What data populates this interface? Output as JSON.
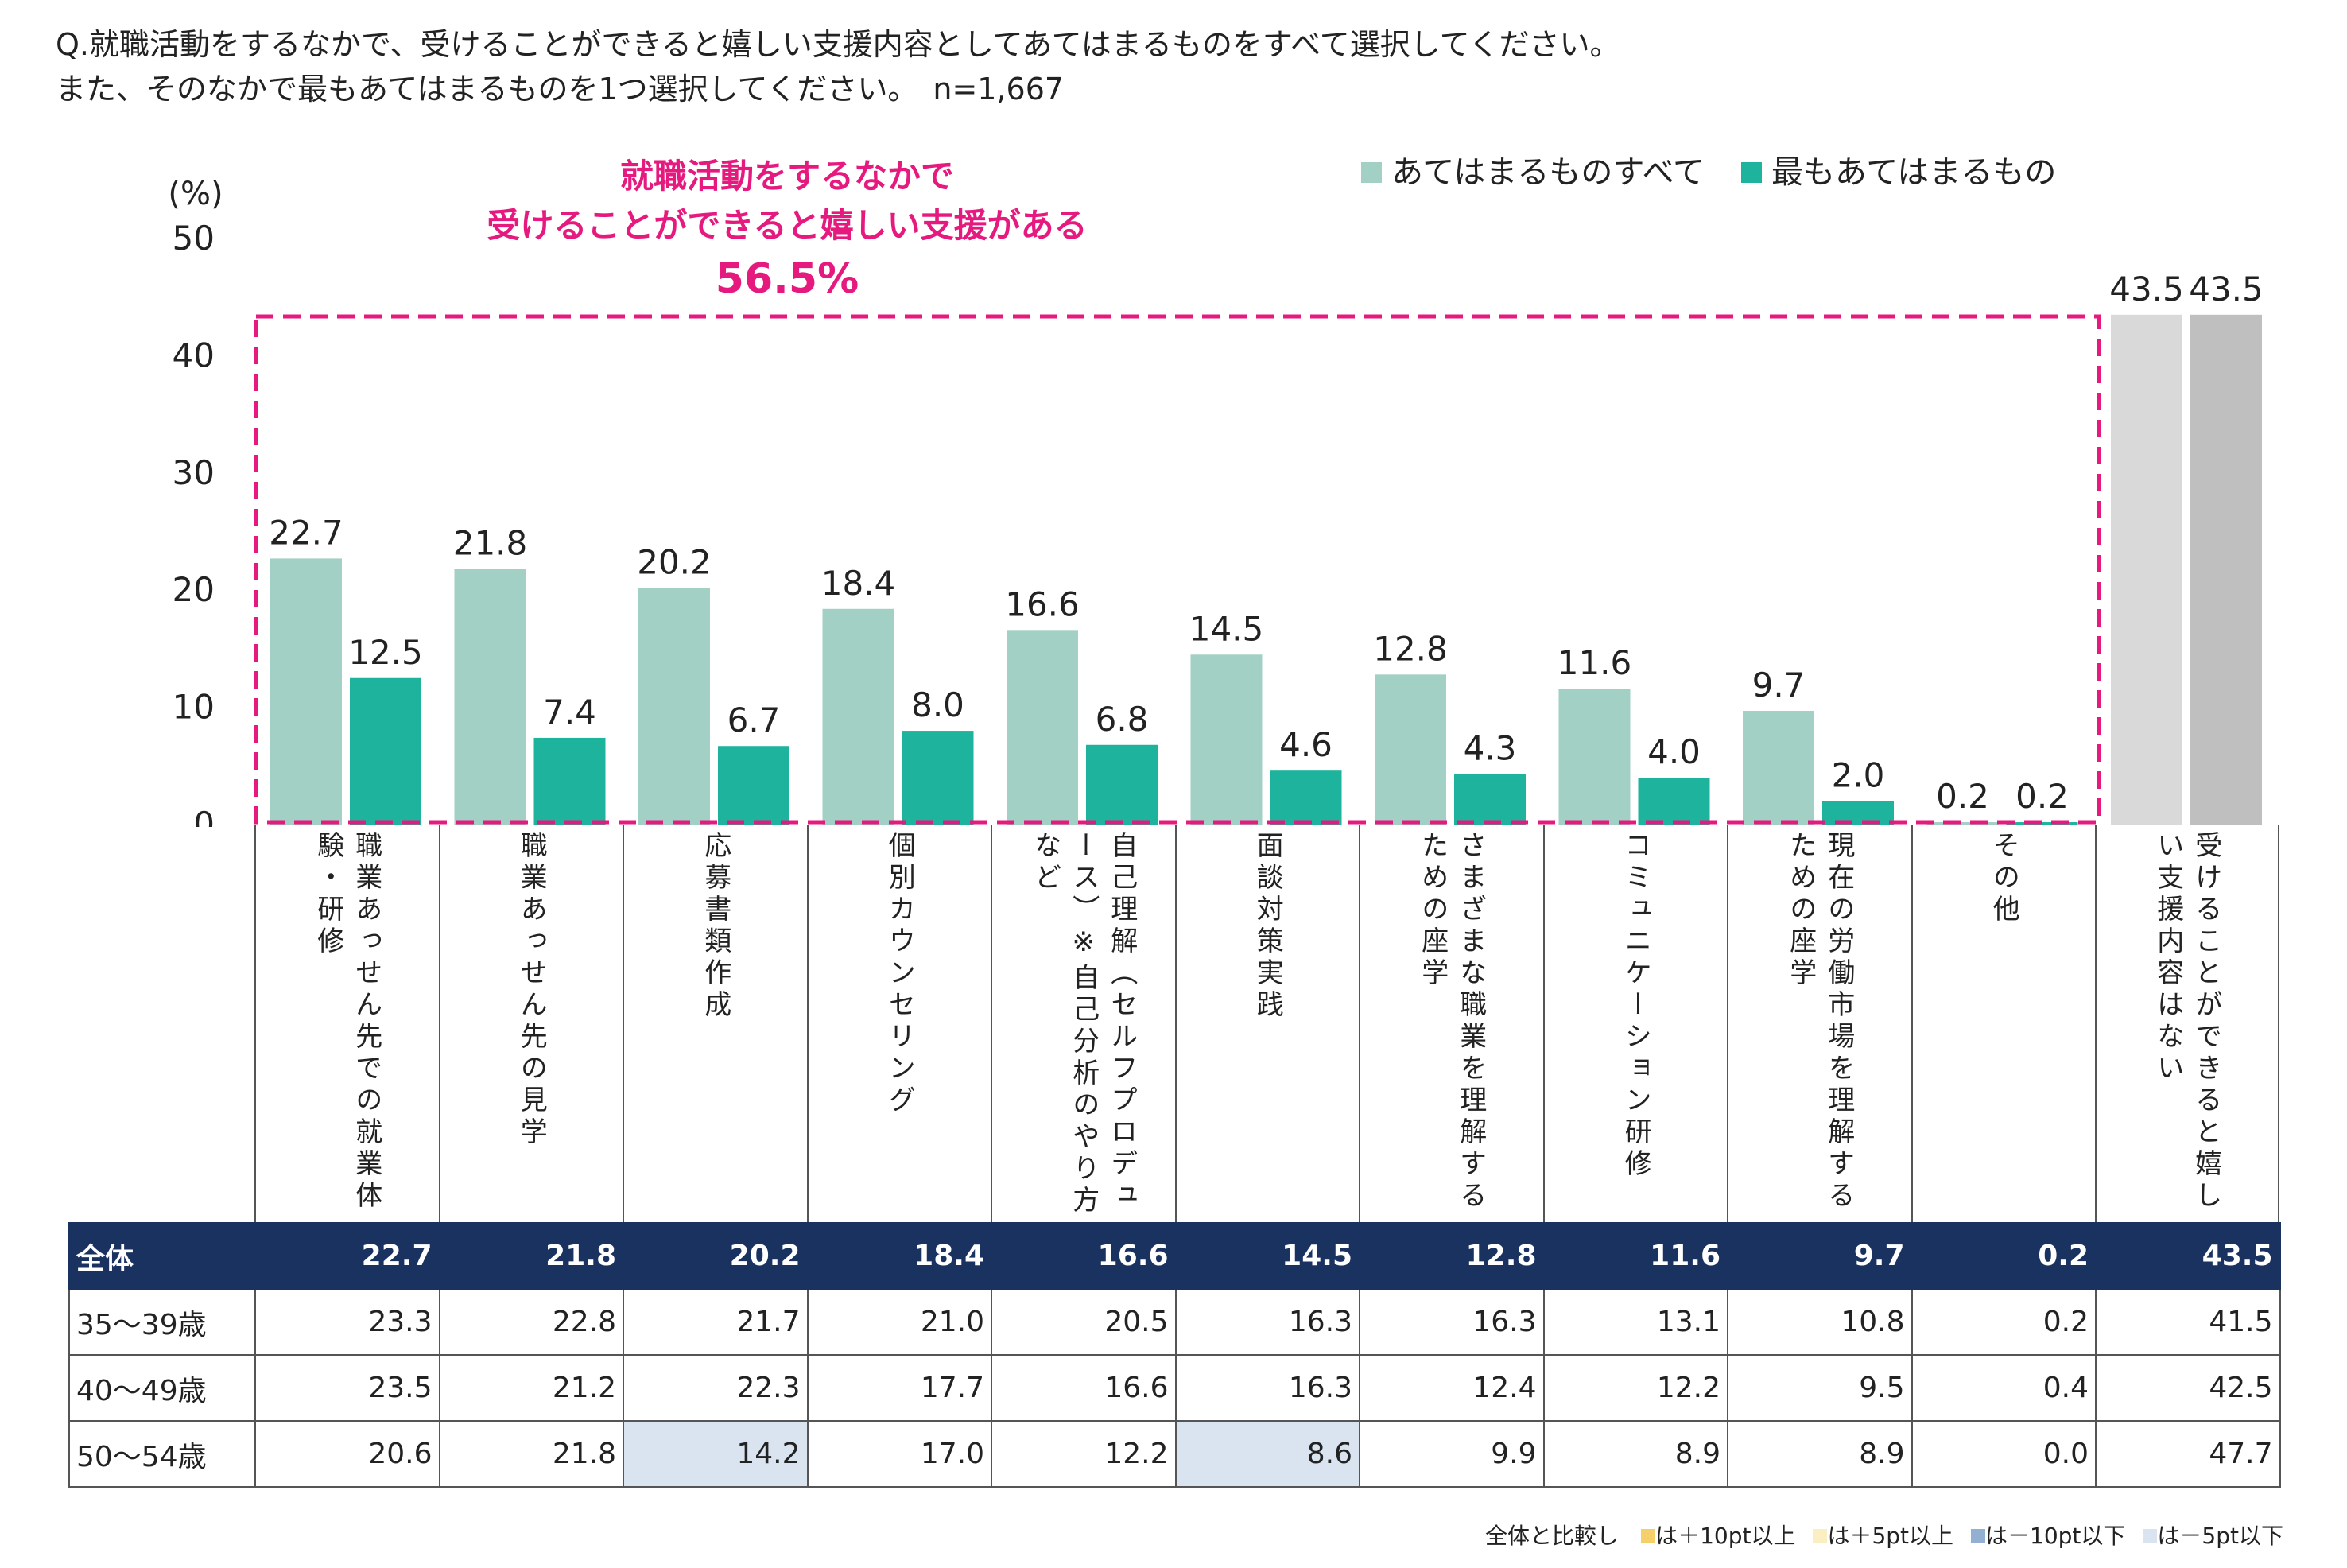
{
  "question": {
    "line1": "Q.就職活動をするなかで、受けることができると嬉しい支援内容としてあてはまるものをすべて選択してください。",
    "line2": "また、そのなかで最もあてはまるものを1つ選択してください。　n=1,667"
  },
  "callout": {
    "line1": "就職活動をするなかで",
    "line2": "受けることができると嬉しい支援がある",
    "value": "56.5%",
    "color": "#e6197e"
  },
  "footnote": {
    "label": "全体と比較し",
    "items": [
      {
        "text": "は＋10pt以上",
        "color": "#f5cf6a"
      },
      {
        "text": "は＋5pt以上",
        "color": "#fbeec3"
      },
      {
        "text": "は－10pt以下",
        "color": "#93b0d2"
      },
      {
        "text": "は－5pt以下",
        "color": "#dae3f0"
      }
    ]
  },
  "chart_data": {
    "type": "bar",
    "ylabel": "(%)",
    "ylim": [
      0,
      50
    ],
    "yticks": [
      0,
      10,
      20,
      30,
      40,
      50
    ],
    "grid": false,
    "legend_position": "top-right",
    "categories": [
      "職業あっせん先での就業体験・研修",
      "職業あっせん先の見学",
      "応募書類作成",
      "個別カウンセリング",
      "自己理解（セルフプロデュース）※自己分析のやり方など",
      "面談対策実践",
      "さまざまな職業を理解するための座学",
      "コミュニケーション研修",
      "現在の労働市場を理解するための座学",
      "その他",
      "受けることができると嬉しい支援内容はない"
    ],
    "series": [
      {
        "name": "あてはまるものすべて",
        "color": "#a3d0c4",
        "values": [
          22.7,
          21.8,
          20.2,
          18.4,
          16.6,
          14.5,
          12.8,
          11.6,
          9.7,
          0.2,
          43.5
        ]
      },
      {
        "name": "最もあてはまるもの",
        "color": "#1db39c",
        "values": [
          12.5,
          7.4,
          6.7,
          8.0,
          6.8,
          4.6,
          4.3,
          4.0,
          2.0,
          0.2,
          43.5
        ]
      }
    ],
    "none_colors": [
      "#d9d9d9",
      "#bfbfbf"
    ],
    "value_labels": [
      [
        "22.7",
        "12.5"
      ],
      [
        "21.8",
        "7.4"
      ],
      [
        "20.2",
        "6.7"
      ],
      [
        "18.4",
        "8.0"
      ],
      [
        "16.6",
        "6.8"
      ],
      [
        "14.5",
        "4.6"
      ],
      [
        "12.8",
        "4.3"
      ],
      [
        "11.6",
        "4.0"
      ],
      [
        "9.7",
        "2.0"
      ],
      [
        "0.2",
        "0.2"
      ],
      [
        "43.5",
        "43.5"
      ]
    ]
  },
  "table": {
    "rows": [
      {
        "label": "全体",
        "values": [
          "22.7",
          "21.8",
          "20.2",
          "18.4",
          "16.6",
          "14.5",
          "12.8",
          "11.6",
          "9.7",
          "0.2",
          "43.5"
        ],
        "highlight": []
      },
      {
        "label": "35～39歳",
        "values": [
          "23.3",
          "22.8",
          "21.7",
          "21.0",
          "20.5",
          "16.3",
          "16.3",
          "13.1",
          "10.8",
          "0.2",
          "41.5"
        ],
        "highlight": []
      },
      {
        "label": "40～49歳",
        "values": [
          "23.5",
          "21.2",
          "22.3",
          "17.7",
          "16.6",
          "16.3",
          "12.4",
          "12.2",
          "9.5",
          "0.4",
          "42.5"
        ],
        "highlight": []
      },
      {
        "label": "50～54歳",
        "values": [
          "20.6",
          "21.8",
          "14.2",
          "17.0",
          "12.2",
          "8.6",
          "9.9",
          "8.9",
          "8.9",
          "0.0",
          "47.7"
        ],
        "highlight": [
          2,
          5
        ]
      }
    ]
  }
}
